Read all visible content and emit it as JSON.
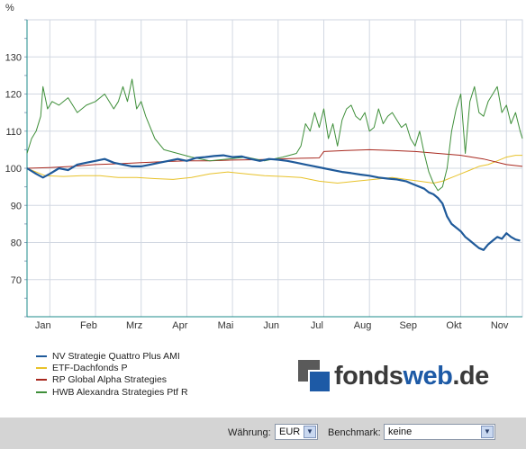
{
  "chart_data": {
    "type": "line",
    "ylabel": "%",
    "ylim": [
      60,
      140
    ],
    "y_ticks": [
      70,
      80,
      90,
      100,
      110,
      120,
      130
    ],
    "x_range": [
      0,
      10.85
    ],
    "months": [
      "Jan",
      "Feb",
      "Mrz",
      "Apr",
      "Mai",
      "Jun",
      "Jul",
      "Aug",
      "Sep",
      "Okt",
      "Nov"
    ],
    "grid": true,
    "legend_position": "bottom-left",
    "series": [
      {
        "name": "NV Strategie Quattro Plus AMI",
        "color": "#1f5a9a",
        "x": [
          0,
          0.2,
          0.35,
          0.5,
          0.7,
          0.9,
          1.1,
          1.3,
          1.5,
          1.7,
          1.9,
          2.1,
          2.3,
          2.5,
          2.7,
          2.9,
          3.1,
          3.3,
          3.5,
          3.7,
          3.9,
          4.1,
          4.3,
          4.5,
          4.7,
          4.9,
          5.1,
          5.3,
          5.5,
          5.7,
          5.9,
          6.1,
          6.3,
          6.5,
          6.7,
          6.9,
          7.1,
          7.3,
          7.5,
          7.7,
          7.9,
          8.1,
          8.3,
          8.5,
          8.7,
          8.8,
          8.9,
          9.0,
          9.1,
          9.2,
          9.3,
          9.4,
          9.5,
          9.6,
          9.7,
          9.8,
          9.9,
          10.0,
          10.1,
          10.2,
          10.3,
          10.4,
          10.5,
          10.6,
          10.7,
          10.8
        ],
        "y": [
          100,
          98.5,
          97.5,
          98.5,
          100,
          99.5,
          101,
          101.5,
          102,
          102.5,
          101.5,
          101,
          100.5,
          100.5,
          101,
          101.5,
          102,
          102.5,
          102,
          102.8,
          103,
          103.3,
          103.5,
          103,
          103.2,
          102.5,
          102,
          102.5,
          102.3,
          102,
          101.5,
          101,
          100.5,
          100,
          99.5,
          99,
          98.7,
          98.3,
          98,
          97.5,
          97.2,
          97,
          96.5,
          95.5,
          94.5,
          93.5,
          93,
          92,
          90.5,
          87,
          85,
          84,
          83,
          81.5,
          80.5,
          79.5,
          78.5,
          78,
          79.5,
          80.5,
          81.5,
          81,
          82.5,
          81.5,
          80.8,
          80.5
        ]
      },
      {
        "name": "ETF-Dachfonds P",
        "color": "#e8c22a",
        "x": [
          0,
          0.4,
          0.8,
          1.2,
          1.6,
          2.0,
          2.4,
          2.8,
          3.2,
          3.6,
          4.0,
          4.4,
          4.8,
          5.2,
          5.6,
          6.0,
          6.4,
          6.8,
          7.2,
          7.6,
          8.0,
          8.3,
          8.6,
          8.9,
          9.1,
          9.3,
          9.5,
          9.7,
          9.9,
          10.1,
          10.3,
          10.5,
          10.7,
          10.85
        ],
        "y": [
          100,
          98,
          97.8,
          98,
          98,
          97.5,
          97.5,
          97.2,
          97,
          97.5,
          98.5,
          99,
          98.5,
          98,
          97.8,
          97.5,
          96.5,
          96,
          96.5,
          97,
          97.5,
          97,
          96.5,
          96,
          96.5,
          97.5,
          98.5,
          99.5,
          100.5,
          101,
          102,
          103,
          103.5,
          103.5
        ]
      },
      {
        "name": "RP Global Alpha Strategies",
        "color": "#a8281e",
        "x": [
          0,
          0.5,
          1.0,
          1.5,
          2.0,
          2.5,
          3.0,
          3.5,
          4.0,
          4.5,
          5.0,
          5.5,
          6.0,
          6.4,
          6.5,
          7.0,
          7.5,
          8.0,
          8.5,
          9.0,
          9.5,
          10.0,
          10.5,
          10.85
        ],
        "y": [
          100,
          100.2,
          100.5,
          101,
          101.2,
          101.5,
          101.8,
          102,
          102,
          102.2,
          102.3,
          102.5,
          102.7,
          102.8,
          104.5,
          104.8,
          105,
          104.8,
          104.5,
          104,
          103.5,
          102.5,
          101,
          100.5
        ]
      },
      {
        "name": "HWB Alexandra Strategies Ptf R",
        "color": "#3f8f3a",
        "x": [
          0,
          0.1,
          0.2,
          0.3,
          0.35,
          0.45,
          0.55,
          0.7,
          0.9,
          1.1,
          1.3,
          1.5,
          1.7,
          1.9,
          2.0,
          2.1,
          2.2,
          2.3,
          2.4,
          2.5,
          2.6,
          2.8,
          3.0,
          3.3,
          3.6,
          4.0,
          4.4,
          4.8,
          5.2,
          5.6,
          5.9,
          6.0,
          6.1,
          6.2,
          6.3,
          6.4,
          6.5,
          6.6,
          6.7,
          6.8,
          6.9,
          7.0,
          7.1,
          7.2,
          7.3,
          7.4,
          7.5,
          7.6,
          7.7,
          7.8,
          7.9,
          8.0,
          8.1,
          8.2,
          8.3,
          8.4,
          8.5,
          8.6,
          8.7,
          8.8,
          8.9,
          9.0,
          9.1,
          9.2,
          9.3,
          9.4,
          9.5,
          9.6,
          9.7,
          9.8,
          9.9,
          10.0,
          10.1,
          10.2,
          10.3,
          10.4,
          10.5,
          10.6,
          10.7,
          10.8,
          10.85
        ],
        "y": [
          104,
          108,
          110,
          114,
          122,
          116,
          118,
          117,
          119,
          115,
          117,
          118,
          120,
          116,
          118,
          122,
          118,
          124,
          116,
          118,
          114,
          108,
          105,
          104,
          103,
          102,
          102.5,
          103,
          102,
          103,
          104,
          106,
          112,
          110,
          115,
          111,
          116,
          108,
          112,
          106,
          113,
          116,
          117,
          114,
          113,
          115,
          110,
          111,
          116,
          112,
          114,
          115,
          113,
          111,
          112,
          108,
          106,
          110,
          104,
          99,
          96,
          94,
          95,
          100,
          110,
          116,
          120,
          104,
          118,
          122,
          115,
          114,
          118,
          120,
          122,
          115,
          117,
          112,
          115,
          110,
          108
        ]
      }
    ]
  },
  "logo": {
    "part1": "fonds",
    "part2": "web",
    "part3": ".de"
  },
  "footer": {
    "currency_label": "Währung:",
    "currency_value": "EUR",
    "benchmark_label": "Benchmark:",
    "benchmark_value": "keine"
  }
}
